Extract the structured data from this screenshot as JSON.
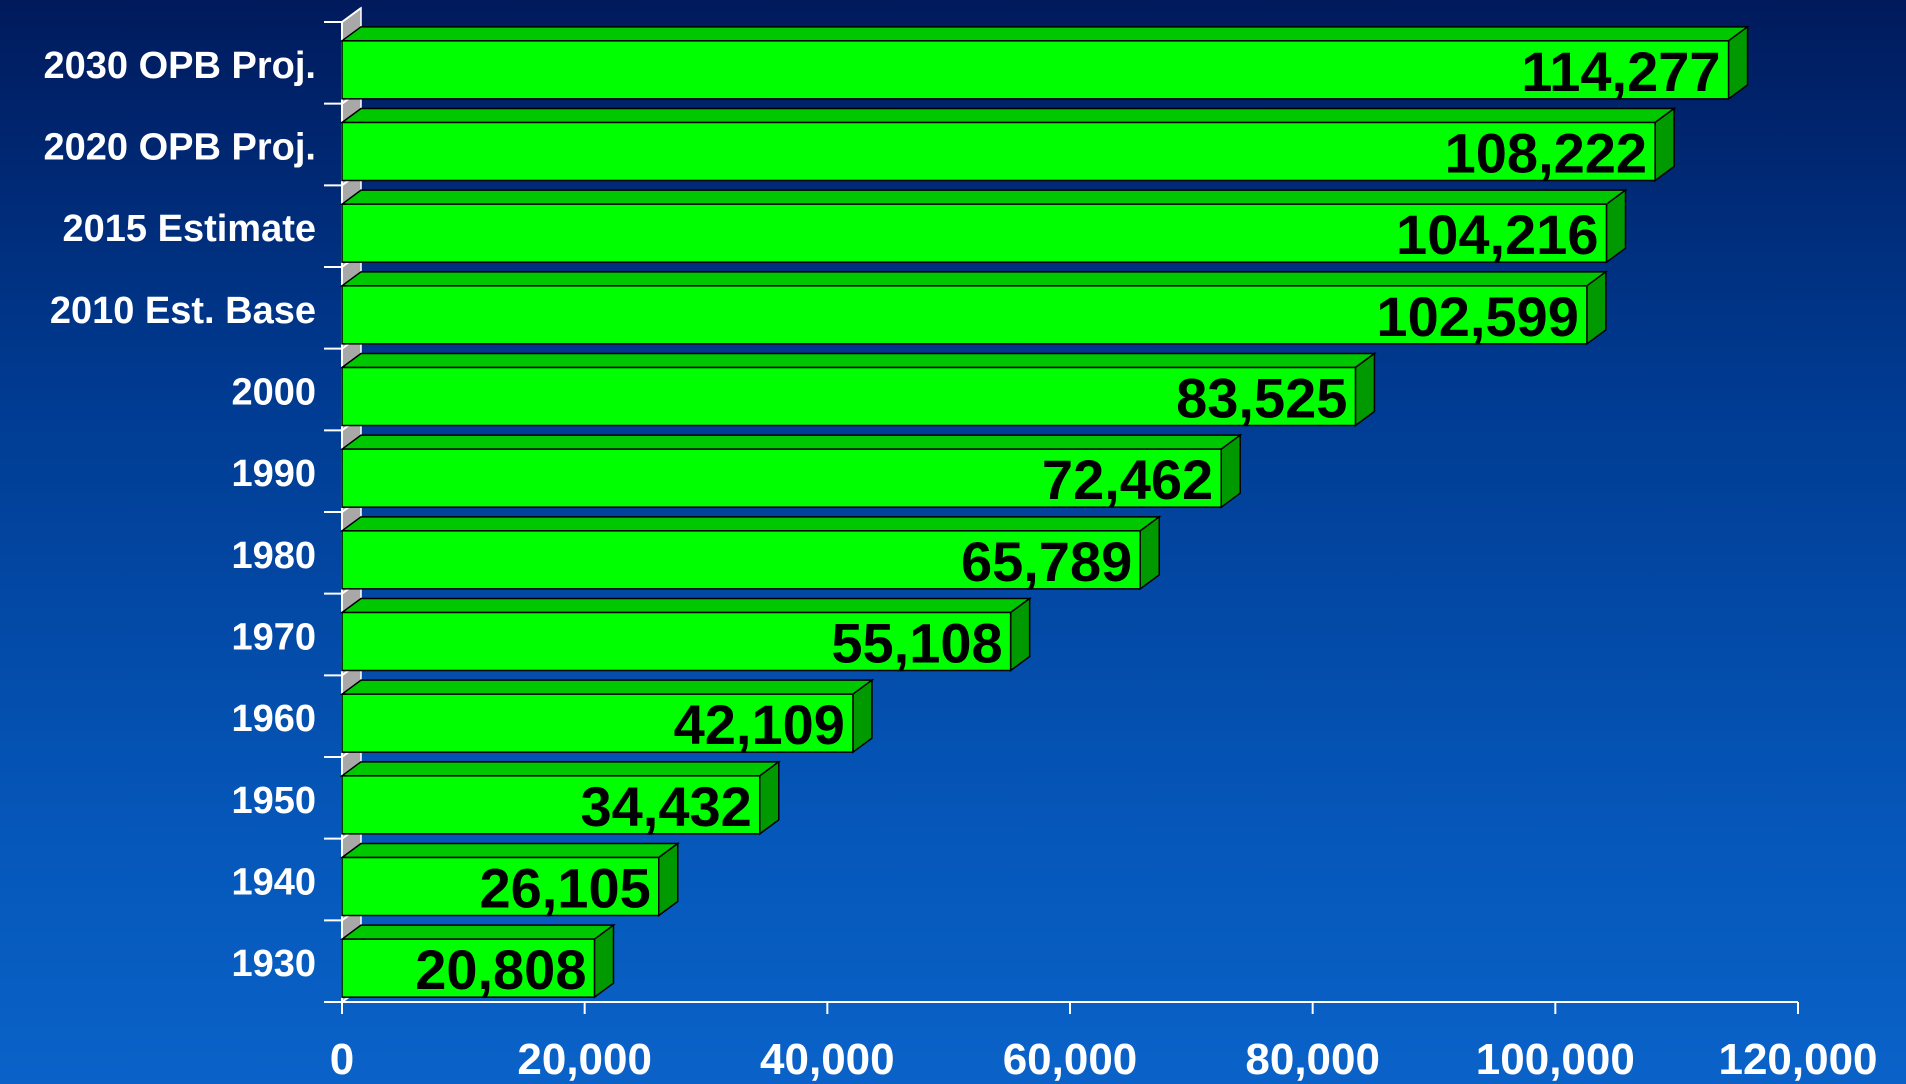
{
  "chart_data": {
    "type": "bar",
    "orientation": "horizontal",
    "style": "3d",
    "categories": [
      "2030 OPB Proj.",
      "2020 OPB Proj.",
      "2015 Estimate",
      "2010 Est. Base",
      "2000",
      "1990",
      "1980",
      "1970",
      "1960",
      "1950",
      "1940",
      "1930"
    ],
    "values": [
      114277,
      108222,
      104216,
      102599,
      83525,
      72462,
      65789,
      55108,
      42109,
      34432,
      26105,
      20808
    ],
    "value_labels": [
      "114,277",
      "108,222",
      "104,216",
      "102,599",
      "83,525",
      "72,462",
      "65,789",
      "55,108",
      "42,109",
      "34,432",
      "26,105",
      "20,808"
    ],
    "xlim": [
      0,
      120000
    ],
    "x_ticks": [
      0,
      20000,
      40000,
      60000,
      80000,
      100000,
      120000
    ],
    "x_tick_labels": [
      "0",
      "20,000",
      "40,000",
      "60,000",
      "80,000",
      "100,000",
      "120,000"
    ],
    "title": "",
    "xlabel": "",
    "ylabel": "",
    "grid": false,
    "legend": "none",
    "colors": {
      "bar_front": "#00ff00",
      "bar_top": "#00c800",
      "bar_side": "#009a00",
      "wall": "#a8a8a8",
      "axis": "#ffffff",
      "label_text": "#ffffff",
      "value_text": "#000000"
    }
  }
}
